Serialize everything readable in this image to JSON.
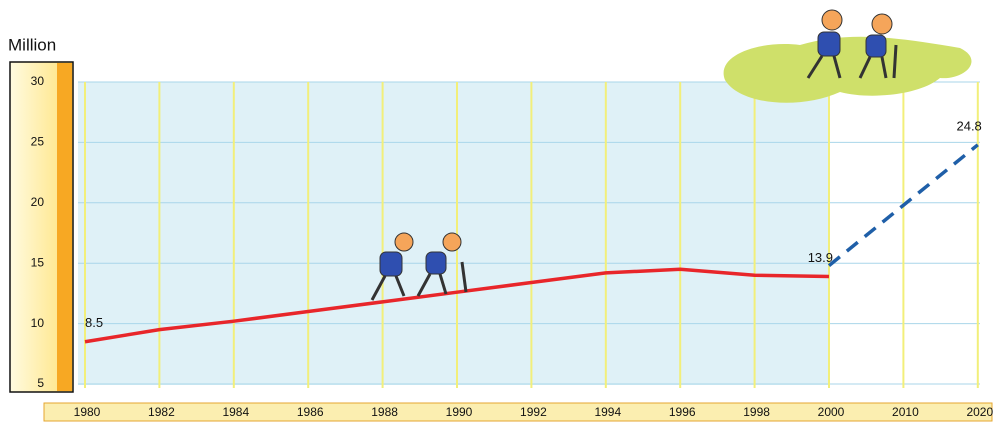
{
  "chart_data": {
    "type": "line",
    "title": "Million",
    "categories": [
      "1980",
      "1982",
      "1984",
      "1986",
      "1988",
      "1990",
      "1992",
      "1994",
      "1996",
      "1998",
      "2000",
      "2010",
      "2020"
    ],
    "series": [
      {
        "color": "#e8262a",
        "dash": false,
        "values": [
          8.5,
          9.5,
          10.2,
          11.0,
          11.8,
          12.6,
          13.4,
          14.2,
          14.5,
          14.0,
          13.9,
          null,
          null
        ],
        "value_labels": [
          "8.5",
          null,
          null,
          null,
          null,
          null,
          null,
          null,
          null,
          null,
          "13.9",
          null,
          null
        ]
      },
      {
        "color": "#1f5fa8",
        "dash": true,
        "values": [
          null,
          null,
          null,
          null,
          null,
          null,
          null,
          null,
          null,
          null,
          14.8,
          19.8,
          24.8
        ],
        "value_labels": [
          null,
          null,
          null,
          null,
          null,
          null,
          null,
          null,
          null,
          null,
          null,
          null,
          "24.8"
        ]
      }
    ],
    "ylim": [
      5,
      30
    ],
    "yticks": [
      5,
      10,
      15,
      20,
      25,
      30
    ],
    "grid": true
  }
}
